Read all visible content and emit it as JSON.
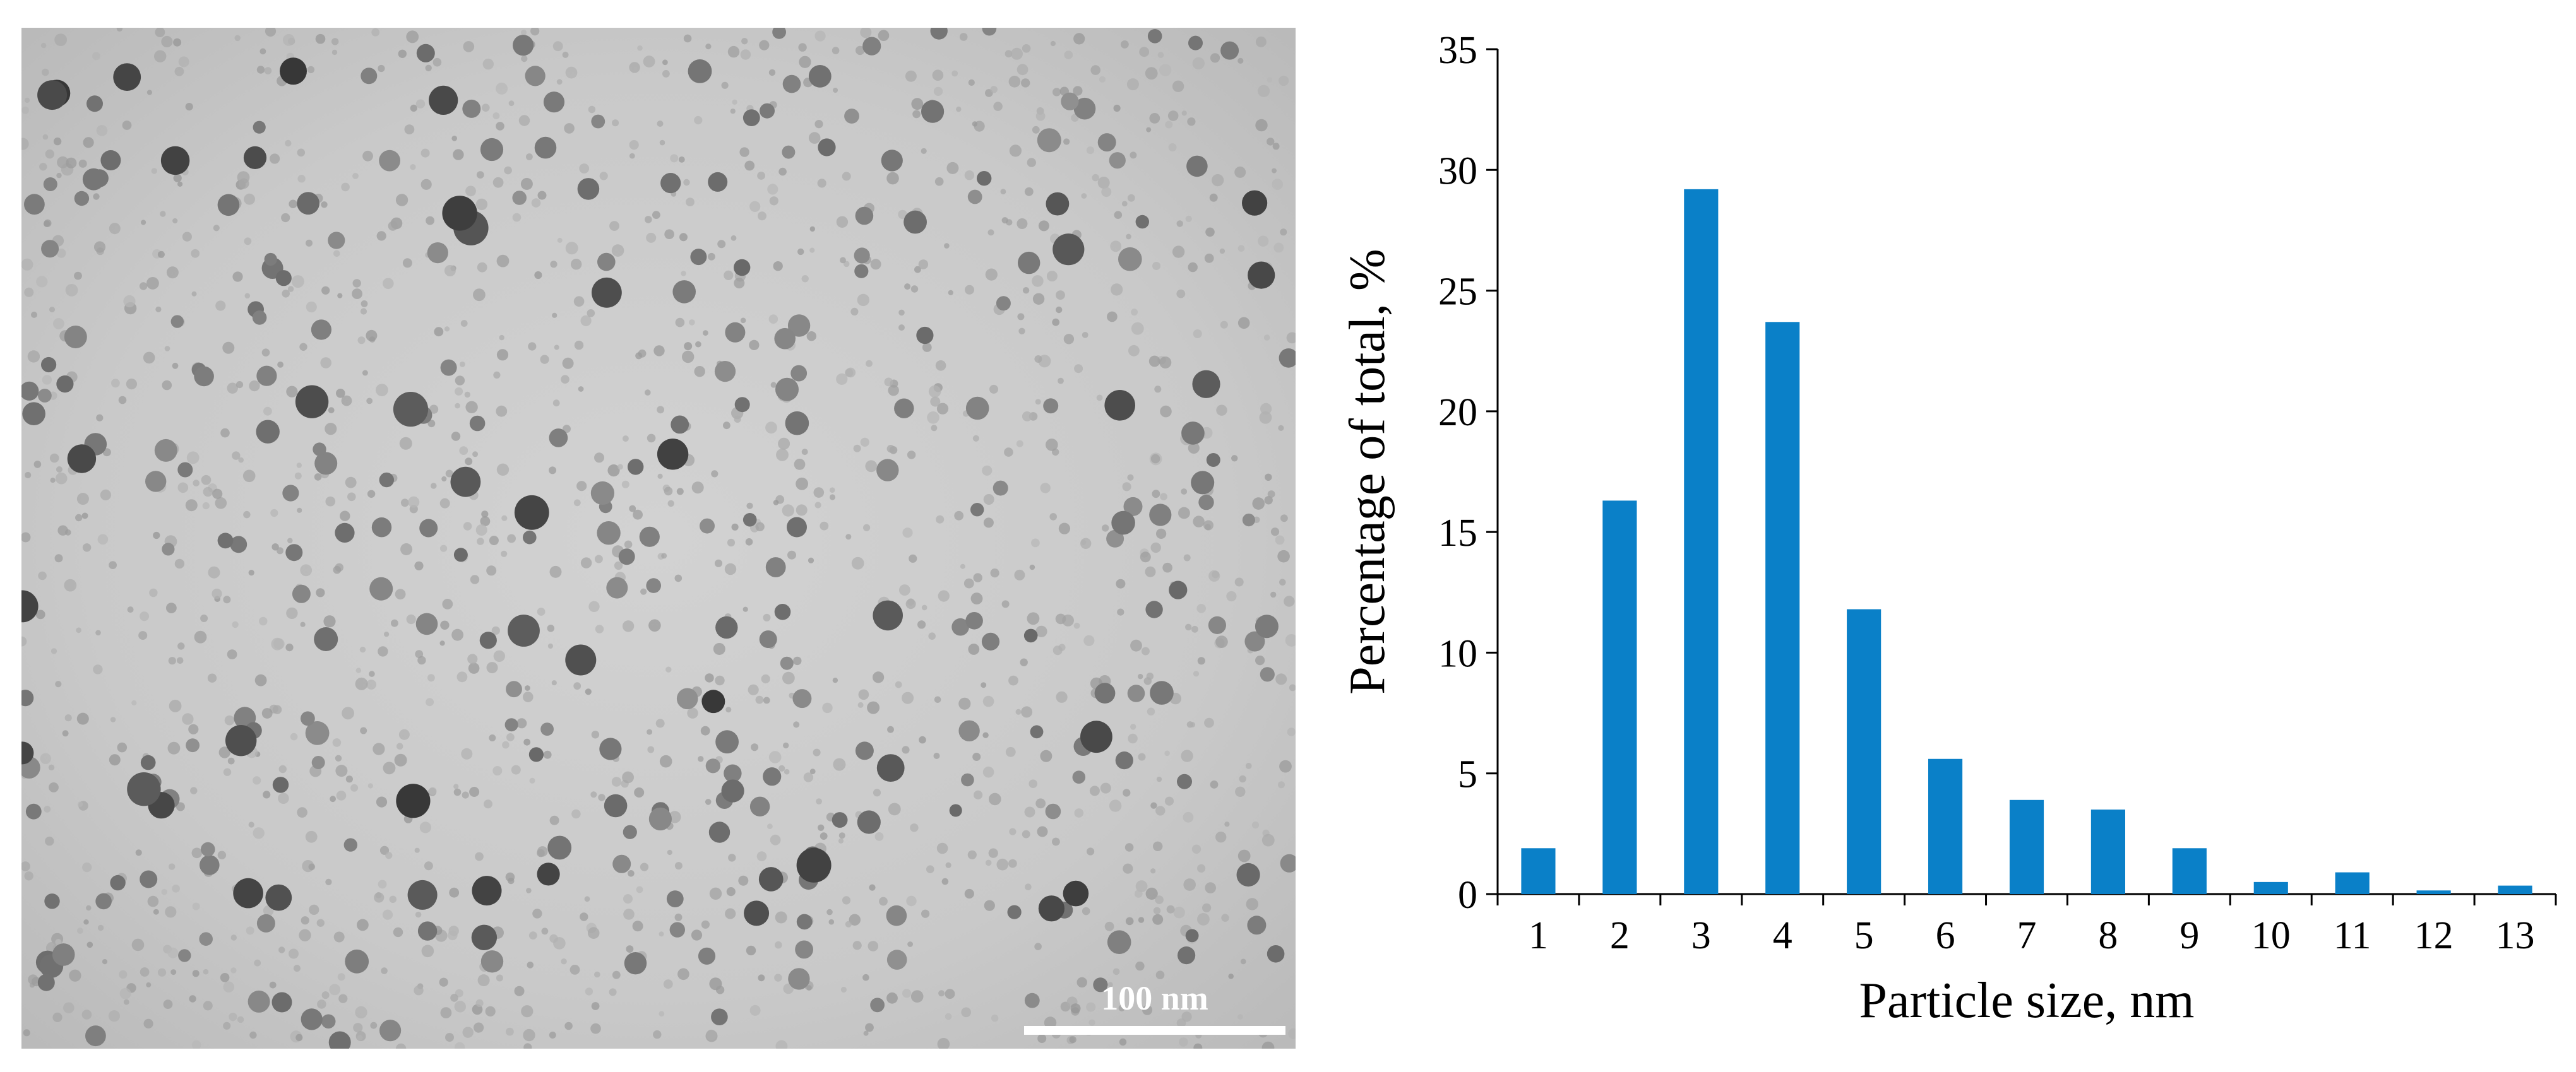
{
  "micrograph": {
    "scale_bar_label": "100 nm"
  },
  "chart_data": {
    "type": "bar",
    "categories": [
      "1",
      "2",
      "3",
      "4",
      "5",
      "6",
      "7",
      "8",
      "9",
      "10",
      "11",
      "12",
      "13"
    ],
    "values": [
      1.9,
      16.3,
      29.2,
      23.7,
      11.8,
      5.6,
      3.9,
      3.5,
      1.9,
      0.5,
      0.9,
      0.15,
      0.35
    ],
    "xlabel": "Particle size, nm",
    "ylabel": "Percentage of total, %",
    "ylim": [
      0,
      35
    ],
    "yticks": [
      0,
      5,
      10,
      15,
      20,
      25,
      30,
      35
    ],
    "grid": false,
    "legend": "none",
    "bar_color": "#0a80c8"
  }
}
